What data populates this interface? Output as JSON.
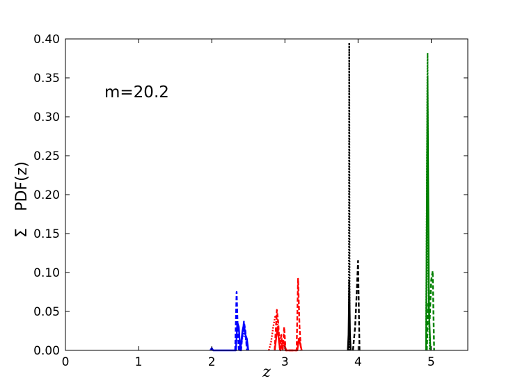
{
  "chart_data": {
    "type": "line",
    "annotation": "m=20.2",
    "xlabel": "z",
    "ylabel_symbol": "Σ",
    "ylabel": "PDF(z)",
    "xlim": [
      0,
      5.5
    ],
    "ylim": [
      0,
      0.4
    ],
    "xticks": [
      0,
      1,
      2,
      3,
      4,
      5
    ],
    "xtick_labels": [
      "0",
      "1",
      "2",
      "3",
      "4",
      "5"
    ],
    "yticks": [
      0.0,
      0.05,
      0.1,
      0.15,
      0.2,
      0.25,
      0.3,
      0.35,
      0.4
    ],
    "ytick_labels": [
      "0.00",
      "0.05",
      "0.10",
      "0.15",
      "0.20",
      "0.25",
      "0.30",
      "0.35",
      "0.40"
    ],
    "grid": false,
    "legend": "none",
    "series": [
      {
        "color": "#0000ff",
        "style": "solid",
        "x": [
          1.98,
          2.0,
          2.02,
          2.33,
          2.35,
          2.37,
          2.39,
          2.42,
          2.44,
          2.46,
          2.48,
          2.5
        ],
        "y": [
          0.0,
          0.003,
          0.0,
          0.0,
          0.036,
          0.03,
          0.0,
          0.025,
          0.034,
          0.02,
          0.015,
          0.0
        ]
      },
      {
        "color": "#0000ff",
        "style": "dashed",
        "x": [
          2.32,
          2.34,
          2.355,
          2.37,
          2.4,
          2.42,
          2.44,
          2.46,
          2.48
        ],
        "y": [
          0.0,
          0.075,
          0.03,
          0.0,
          0.0,
          0.02,
          0.037,
          0.025,
          0.0
        ]
      },
      {
        "color": "#0000ff",
        "style": "dotted",
        "x": [
          2.38,
          2.42,
          2.44,
          2.47,
          2.5
        ],
        "y": [
          0.0,
          0.016,
          0.025,
          0.012,
          0.0
        ]
      },
      {
        "color": "#ff0000",
        "style": "solid",
        "x": [
          2.86,
          2.88,
          2.9,
          2.92,
          2.94,
          2.96,
          2.98,
          3.0,
          3.02,
          3.17,
          3.19,
          3.21,
          3.23
        ],
        "y": [
          0.0,
          0.015,
          0.03,
          0.01,
          0.0,
          0.008,
          0.012,
          0.005,
          0.0,
          0.0,
          0.015,
          0.008,
          0.0
        ]
      },
      {
        "color": "#ff0000",
        "style": "dashed",
        "x": [
          2.86,
          2.89,
          2.91,
          2.93,
          2.95,
          2.97,
          2.99,
          3.01,
          3.16,
          3.18,
          3.2,
          3.22
        ],
        "y": [
          0.0,
          0.052,
          0.035,
          0.0,
          0.02,
          0.0,
          0.03,
          0.0,
          0.0,
          0.092,
          0.03,
          0.0
        ]
      },
      {
        "color": "#ff0000",
        "style": "dotted",
        "x": [
          2.78,
          2.81,
          2.84,
          2.87,
          2.89,
          2.92,
          2.95,
          2.98,
          3.02
        ],
        "y": [
          0.0,
          0.01,
          0.03,
          0.045,
          0.04,
          0.02,
          0.01,
          0.006,
          0.0
        ]
      },
      {
        "color": "#000000",
        "style": "solid",
        "x": [
          3.86,
          3.87,
          3.88,
          3.89,
          3.9
        ],
        "y": [
          0.0,
          0.02,
          0.09,
          0.02,
          0.0
        ]
      },
      {
        "color": "#000000",
        "style": "dashed",
        "x": [
          3.93,
          3.96,
          3.98,
          4.0,
          4.02
        ],
        "y": [
          0.0,
          0.03,
          0.07,
          0.115,
          0.0
        ]
      },
      {
        "color": "#000000",
        "style": "dotted",
        "x": [
          3.875,
          3.88,
          3.885
        ],
        "y": [
          0.0,
          0.395,
          0.0
        ]
      },
      {
        "color": "#008000",
        "style": "solid",
        "x": [
          4.93,
          4.95,
          4.97,
          4.99
        ],
        "y": [
          0.0,
          0.352,
          0.05,
          0.0
        ]
      },
      {
        "color": "#008000",
        "style": "dashed",
        "x": [
          4.94,
          4.96,
          4.98,
          5.0,
          5.02,
          5.04
        ],
        "y": [
          0.0,
          0.06,
          0.04,
          0.09,
          0.102,
          0.0
        ]
      },
      {
        "color": "#008000",
        "style": "dotted",
        "x": [
          4.93,
          4.95,
          4.96,
          4.98
        ],
        "y": [
          0.0,
          0.382,
          0.1,
          0.0
        ]
      }
    ]
  }
}
